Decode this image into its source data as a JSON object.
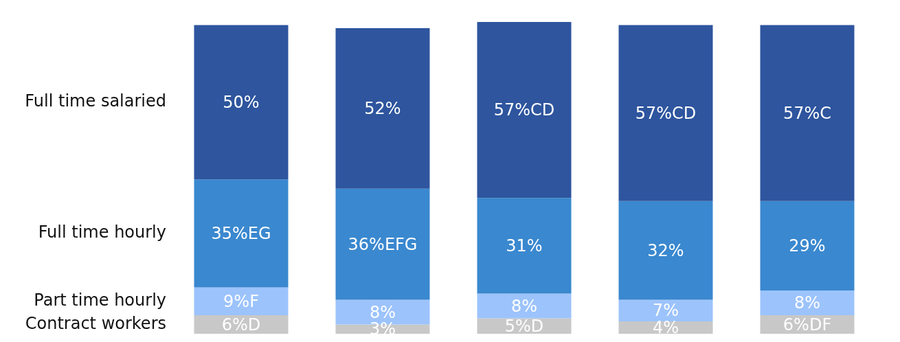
{
  "chart_data": {
    "type": "bar",
    "stacked": true,
    "categories": [
      null,
      null,
      null,
      null,
      null
    ],
    "series": [
      {
        "name": "Contract workers",
        "color": "#c8c8c8",
        "values": [
          6,
          3,
          5,
          4,
          6
        ],
        "value_labels": [
          "6%D",
          "3%",
          "5%D",
          "4%",
          "6%DF"
        ]
      },
      {
        "name": "Part time hourly",
        "color": "#9cc3fc",
        "values": [
          9,
          8,
          8,
          7,
          8
        ],
        "value_labels": [
          "9%F",
          "8%",
          "8%",
          "7%",
          "8%"
        ]
      },
      {
        "name": "Full time hourly",
        "color": "#3a88cf",
        "values": [
          35,
          36,
          31,
          32,
          29
        ],
        "value_labels": [
          "35%EG",
          "36%EFG",
          "31%",
          "32%",
          "29%"
        ]
      },
      {
        "name": "Full time salaried",
        "color": "#2e559e",
        "values": [
          50,
          52,
          57,
          57,
          57
        ],
        "value_labels": [
          "50%",
          "52%",
          "57%CD",
          "57%CD",
          "57%C"
        ]
      }
    ]
  }
}
